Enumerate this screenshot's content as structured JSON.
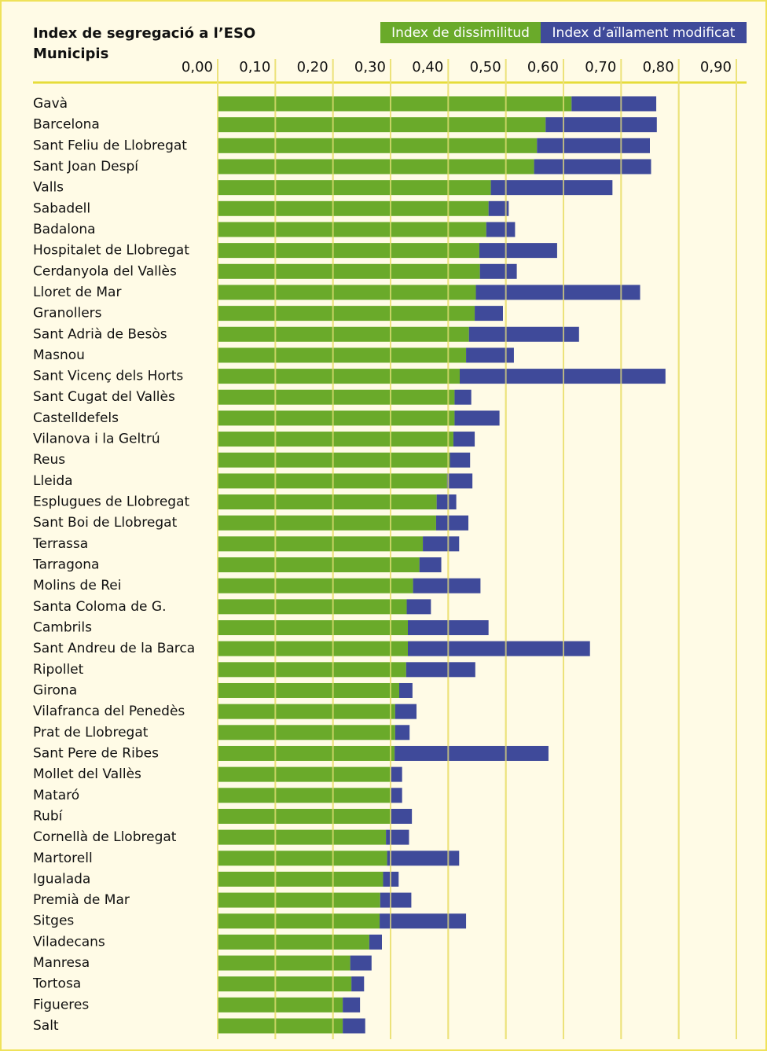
{
  "chart_data": {
    "type": "stacked-bar-horizontal",
    "title": "Index de segregació a l’ESO",
    "subtitle": "Municipis",
    "categories": [
      "Gavà",
      "Barcelona",
      "Sant Feliu de Llobregat",
      "Sant Joan Despí",
      "Valls",
      "Sabadell",
      "Badalona",
      "Hospitalet de Llobregat",
      "Cerdanyola del Vallès",
      "Lloret de Mar",
      "Granollers",
      "Sant Adrià de Besòs",
      "Masnou",
      "Sant Vicenç dels Horts",
      "Sant Cugat del Vallès",
      "Castelldefels",
      "Vilanova i la Geltrú",
      "Reus",
      "Lleida",
      "Esplugues de Llobregat",
      "Sant Boi de Llobregat",
      "Terrassa",
      "Tarragona",
      "Molins de Rei",
      "Santa Coloma de G.",
      "Cambrils",
      "Sant Andreu de la Barca",
      "Ripollet",
      "Girona",
      "Vilafranca del Penedès",
      "Prat de Llobregat",
      "Sant Pere de Ribes",
      "Mollet del Vallès",
      "Mataró",
      "Rubí",
      "Cornellà de Llobregat",
      "Martorell",
      "Igualada",
      "Premià de Mar",
      "Sitges",
      "Viladecans",
      "Manresa",
      "Tortosa",
      "Figueres",
      "Salt"
    ],
    "series": [
      {
        "name": "Index de dissimilitud",
        "color": "#6aaa2a",
        "values": [
          0.614,
          0.569,
          0.554,
          0.549,
          0.474,
          0.47,
          0.466,
          0.454,
          0.455,
          0.448,
          0.446,
          0.436,
          0.431,
          0.42,
          0.411,
          0.411,
          0.409,
          0.403,
          0.398,
          0.38,
          0.379,
          0.356,
          0.35,
          0.339,
          0.328,
          0.33,
          0.33,
          0.327,
          0.315,
          0.308,
          0.308,
          0.307,
          0.3,
          0.3,
          0.3,
          0.292,
          0.294,
          0.287,
          0.282,
          0.281,
          0.263,
          0.23,
          0.232,
          0.217,
          0.217
        ]
      },
      {
        "name": "Index d’aïllament modificat",
        "color": "#3f4a9a",
        "values": [
          0.147,
          0.193,
          0.196,
          0.203,
          0.211,
          0.035,
          0.05,
          0.135,
          0.064,
          0.285,
          0.049,
          0.191,
          0.083,
          0.357,
          0.029,
          0.078,
          0.037,
          0.035,
          0.044,
          0.034,
          0.056,
          0.063,
          0.038,
          0.117,
          0.042,
          0.14,
          0.316,
          0.12,
          0.023,
          0.037,
          0.025,
          0.267,
          0.02,
          0.02,
          0.037,
          0.04,
          0.125,
          0.027,
          0.054,
          0.15,
          0.022,
          0.037,
          0.022,
          0.03,
          0.039
        ]
      }
    ],
    "xlim": [
      0,
      0.9
    ],
    "xticks": [
      {
        "value": 0,
        "label": "0,00"
      },
      {
        "value": 0.1,
        "label": "0,10"
      },
      {
        "value": 0.2,
        "label": "0,20"
      },
      {
        "value": 0.3,
        "label": "0,30"
      },
      {
        "value": 0.4,
        "label": "0,40"
      },
      {
        "value": 0.5,
        "label": "0,50"
      },
      {
        "value": 0.6,
        "label": "0,60"
      },
      {
        "value": 0.7,
        "label": "0,70"
      },
      {
        "value": 0.8,
        "label": "0,80"
      },
      {
        "value": 0.9,
        "label": "0,90"
      }
    ],
    "grid": true
  }
}
